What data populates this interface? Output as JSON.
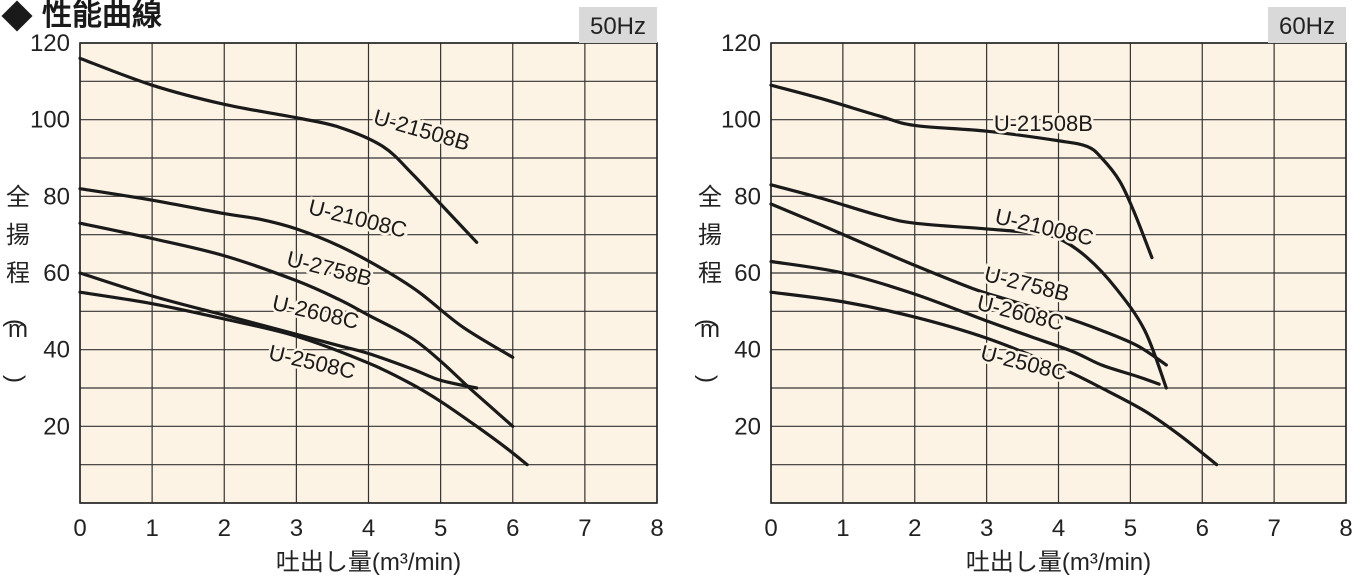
{
  "page_title": "性能曲線",
  "chart_data": [
    {
      "type": "line",
      "freq_label": "50Hz",
      "xlabel": "吐出し量(m³/min)",
      "ylabel": "全揚程(m)",
      "xlim": [
        0,
        8
      ],
      "ylim": [
        0,
        120
      ],
      "x_ticks": [
        0,
        1,
        2,
        3,
        4,
        5,
        6,
        7,
        8
      ],
      "y_ticks": [
        20,
        40,
        60,
        80,
        100,
        120
      ],
      "grid": true,
      "background": "#fdf3e4",
      "line_color": "#1a1a1a",
      "series": [
        {
          "name": "U-21508B",
          "points": [
            [
              0,
              116
            ],
            [
              1,
              109
            ],
            [
              2,
              104
            ],
            [
              3,
              100.5
            ],
            [
              3.6,
              98
            ],
            [
              4.2,
              93
            ],
            [
              4.6,
              86
            ],
            [
              5,
              78
            ],
            [
              5.5,
              68
            ]
          ]
        },
        {
          "name": "U-21008C",
          "points": [
            [
              0,
              82
            ],
            [
              1,
              79
            ],
            [
              2,
              75.5
            ],
            [
              2.5,
              74
            ],
            [
              3,
              71.5
            ],
            [
              3.6,
              67
            ],
            [
              4.2,
              61
            ],
            [
              4.7,
              55
            ],
            [
              5.3,
              46
            ],
            [
              6,
              38
            ]
          ]
        },
        {
          "name": "U-2758B",
          "points": [
            [
              0,
              73
            ],
            [
              1,
              69
            ],
            [
              2,
              64.5
            ],
            [
              3,
              58
            ],
            [
              3.6,
              53
            ],
            [
              4,
              49
            ],
            [
              4.6,
              43
            ],
            [
              5,
              37
            ],
            [
              5.4,
              30
            ],
            [
              5.7,
              25
            ],
            [
              6,
              20
            ]
          ]
        },
        {
          "name": "U-2608C",
          "points": [
            [
              0,
              60
            ],
            [
              1,
              54
            ],
            [
              2,
              49
            ],
            [
              2.4,
              47
            ],
            [
              3,
              44
            ],
            [
              3.6,
              41
            ],
            [
              4,
              39
            ],
            [
              4.6,
              35
            ],
            [
              5,
              32
            ],
            [
              5.5,
              30
            ]
          ]
        },
        {
          "name": "U-2508C",
          "points": [
            [
              0,
              55
            ],
            [
              1,
              52
            ],
            [
              2,
              48
            ],
            [
              3,
              43.5
            ],
            [
              4,
              36.5
            ],
            [
              4.6,
              31
            ],
            [
              5,
              26.5
            ],
            [
              5.5,
              20
            ],
            [
              5.9,
              14.5
            ],
            [
              6.2,
              10
            ]
          ]
        }
      ],
      "labels": [
        {
          "text": "U-21508B",
          "x": 4.05,
          "y": 99,
          "angle": 16
        },
        {
          "text": "U-21008C",
          "x": 3.15,
          "y": 75.5,
          "angle": 14
        },
        {
          "text": "U-2758B",
          "x": 2.85,
          "y": 62,
          "angle": 14
        },
        {
          "text": "U-2608C",
          "x": 2.65,
          "y": 50.5,
          "angle": 13
        },
        {
          "text": "U-2508C",
          "x": 2.6,
          "y": 37.5,
          "angle": 13
        }
      ]
    },
    {
      "type": "line",
      "freq_label": "60Hz",
      "xlabel": "吐出し量(m³/min)",
      "ylabel": "全揚程(m)",
      "xlim": [
        0,
        8
      ],
      "ylim": [
        0,
        120
      ],
      "x_ticks": [
        0,
        1,
        2,
        3,
        4,
        5,
        6,
        7,
        8
      ],
      "y_ticks": [
        20,
        40,
        60,
        80,
        100,
        120
      ],
      "grid": true,
      "background": "#fdf3e4",
      "line_color": "#1a1a1a",
      "series": [
        {
          "name": "U-21508B",
          "points": [
            [
              0,
              109
            ],
            [
              0.7,
              105.5
            ],
            [
              1.5,
              101
            ],
            [
              2,
              98.5
            ],
            [
              3,
              97
            ],
            [
              4,
              94.5
            ],
            [
              4.4,
              93
            ],
            [
              4.6,
              90
            ],
            [
              4.85,
              84
            ],
            [
              5.05,
              76
            ],
            [
              5.3,
              64
            ]
          ]
        },
        {
          "name": "U-21008C",
          "points": [
            [
              0,
              83
            ],
            [
              0.7,
              79.5
            ],
            [
              1.5,
              75
            ],
            [
              2,
              73
            ],
            [
              3,
              71.5
            ],
            [
              3.6,
              70.5
            ],
            [
              4,
              69
            ],
            [
              4.4,
              64
            ],
            [
              4.8,
              56
            ],
            [
              5.2,
              45
            ],
            [
              5.5,
              30
            ]
          ]
        },
        {
          "name": "U-2758B",
          "points": [
            [
              0,
              78
            ],
            [
              0.7,
              72.5
            ],
            [
              1.5,
              66
            ],
            [
              2,
              62
            ],
            [
              2.8,
              56
            ],
            [
              3.3,
              53
            ],
            [
              4,
              49
            ],
            [
              4.6,
              45
            ],
            [
              5.1,
              41
            ],
            [
              5.5,
              36
            ]
          ]
        },
        {
          "name": "U-2608C",
          "points": [
            [
              0,
              63
            ],
            [
              1,
              60
            ],
            [
              2,
              54.5
            ],
            [
              3,
              47.5
            ],
            [
              3.6,
              43.5
            ],
            [
              4.2,
              39.5
            ],
            [
              4.6,
              36
            ],
            [
              5.1,
              33
            ],
            [
              5.4,
              31
            ]
          ]
        },
        {
          "name": "U-2508C",
          "points": [
            [
              0,
              55
            ],
            [
              1,
              52.5
            ],
            [
              2,
              48.5
            ],
            [
              3,
              43
            ],
            [
              4,
              35.5
            ],
            [
              4.6,
              30
            ],
            [
              5.2,
              24
            ],
            [
              5.7,
              17.5
            ],
            [
              6.2,
              10
            ]
          ]
        }
      ],
      "labels": [
        {
          "text": "U-21508B",
          "x": 3.1,
          "y": 97,
          "angle": 0
        },
        {
          "text": "U-21008C",
          "x": 3.1,
          "y": 73,
          "angle": 13
        },
        {
          "text": "U-2758B",
          "x": 2.95,
          "y": 58,
          "angle": 14
        },
        {
          "text": "U-2608C",
          "x": 2.85,
          "y": 50.5,
          "angle": 14
        },
        {
          "text": "U-2508C",
          "x": 2.9,
          "y": 37.5,
          "angle": 14
        }
      ]
    }
  ]
}
